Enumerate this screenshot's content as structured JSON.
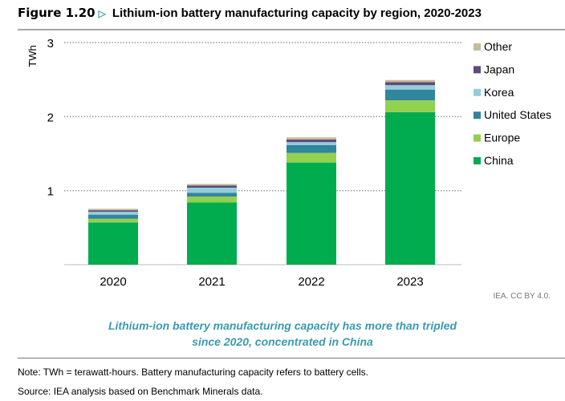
{
  "header": {
    "figure_label": "Figure 1.20",
    "title": "Lithium-ion battery manufacturing capacity by region, 2020-2023"
  },
  "chart_data": {
    "type": "bar",
    "stacked": true,
    "title": "Lithium-ion battery manufacturing capacity by region, 2020-2023",
    "ylabel": "TWh",
    "xlabel": "",
    "ylim": [
      0,
      3
    ],
    "yticks": [
      "1",
      "2",
      "3"
    ],
    "grid": true,
    "legend_position": "right",
    "categories": [
      "2020",
      "2021",
      "2022",
      "2023"
    ],
    "series": [
      {
        "name": "China",
        "color": "#00ac4e",
        "values": [
          0.57,
          0.84,
          1.38,
          2.06
        ]
      },
      {
        "name": "Europe",
        "color": "#92d050",
        "values": [
          0.05,
          0.08,
          0.13,
          0.16
        ]
      },
      {
        "name": "United States",
        "color": "#31859c",
        "values": [
          0.055,
          0.05,
          0.105,
          0.145
        ]
      },
      {
        "name": "Korea",
        "color": "#92cddc",
        "values": [
          0.04,
          0.07,
          0.04,
          0.06
        ]
      },
      {
        "name": "Japan",
        "color": "#604a7b",
        "values": [
          0.02,
          0.03,
          0.035,
          0.04
        ]
      },
      {
        "name": "Other",
        "color": "#c4bd97",
        "values": [
          0.02,
          0.02,
          0.03,
          0.03
        ]
      }
    ]
  },
  "credit": "IEA. CC BY 4.0.",
  "caption": [
    "Lithium-ion battery manufacturing capacity has more than tripled",
    "since 2020, concentrated in China"
  ],
  "notes": [
    "Note: TWh = terawatt-hours. Battery manufacturing capacity refers to battery cells.",
    "Source: IEA analysis based on Benchmark Minerals data."
  ]
}
